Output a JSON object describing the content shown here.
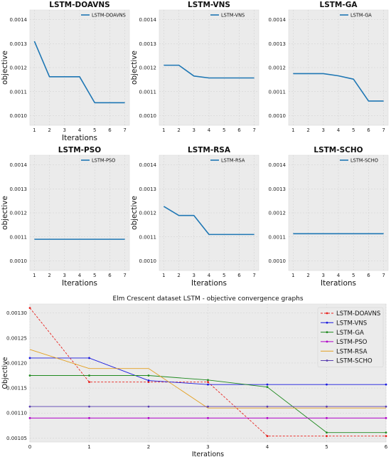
{
  "chart_data": [
    {
      "type": "line",
      "title": "LSTM-DOAVNS",
      "xlabel": "Iterations",
      "ylabel": "objective",
      "x": [
        1,
        2,
        3,
        4,
        5,
        6,
        7
      ],
      "xticks": [
        "1",
        "2",
        "3",
        "4",
        "5",
        "6",
        "7"
      ],
      "yticks": [
        0.001,
        0.0011,
        0.0012,
        0.0013,
        0.0014
      ],
      "ytick_labels": [
        "0.0010",
        "0.0011",
        "0.0012",
        "0.0013",
        "0.0014"
      ],
      "ylim": [
        0.00096,
        0.00144
      ],
      "xlim": [
        0.7,
        7.3
      ],
      "grid": true,
      "legend": "top-right",
      "series": [
        {
          "name": "LSTM-DOAVNS",
          "color": "#1f77b4",
          "values": [
            0.00131,
            0.001162,
            0.001162,
            0.001162,
            0.001054,
            0.001054,
            0.001054
          ]
        }
      ]
    },
    {
      "type": "line",
      "title": "LSTM-VNS",
      "xlabel": "",
      "ylabel": "objective",
      "x": [
        1,
        2,
        3,
        4,
        5,
        6,
        7
      ],
      "xticks": [
        "1",
        "2",
        "3",
        "4",
        "5",
        "6",
        "7"
      ],
      "yticks": [
        0.001,
        0.0011,
        0.0012,
        0.0013,
        0.0014
      ],
      "ytick_labels": [
        "0.0010",
        "0.0011",
        "0.0012",
        "0.0013",
        "0.0014"
      ],
      "ylim": [
        0.00096,
        0.00144
      ],
      "xlim": [
        0.7,
        7.3
      ],
      "grid": true,
      "legend": "top-right",
      "series": [
        {
          "name": "LSTM-VNS",
          "color": "#1f77b4",
          "values": [
            0.00121,
            0.00121,
            0.001165,
            0.001157,
            0.001157,
            0.001157,
            0.001157
          ]
        }
      ]
    },
    {
      "type": "line",
      "title": "LSTM-GA",
      "xlabel": "",
      "ylabel": "",
      "x": [
        1,
        2,
        3,
        4,
        5,
        6,
        7
      ],
      "xticks": [
        "1",
        "2",
        "3",
        "4",
        "5",
        "6",
        "7"
      ],
      "yticks": [
        0.001,
        0.0011,
        0.0012,
        0.0013,
        0.0014
      ],
      "ytick_labels": [
        "0.0010",
        "0.0011",
        "0.0012",
        "0.0013",
        "0.0014"
      ],
      "ylim": [
        0.00096,
        0.00144
      ],
      "xlim": [
        0.7,
        7.3
      ],
      "grid": true,
      "legend": "top-right",
      "series": [
        {
          "name": "LSTM-GA",
          "color": "#1f77b4",
          "values": [
            0.001175,
            0.001175,
            0.001175,
            0.001166,
            0.001152,
            0.001061,
            0.001061
          ]
        }
      ]
    },
    {
      "type": "line",
      "title": "LSTM-PSO",
      "xlabel": "Iterations",
      "ylabel": "objective",
      "x": [
        1,
        2,
        3,
        4,
        5,
        6,
        7
      ],
      "xticks": [
        "1",
        "2",
        "3",
        "4",
        "5",
        "6",
        "7"
      ],
      "yticks": [
        0.001,
        0.0011,
        0.0012,
        0.0013,
        0.0014
      ],
      "ytick_labels": [
        "0.0010",
        "0.0011",
        "0.0012",
        "0.0013",
        "0.0014"
      ],
      "ylim": [
        0.00096,
        0.00144
      ],
      "xlim": [
        0.7,
        7.3
      ],
      "grid": true,
      "legend": "top-right",
      "series": [
        {
          "name": "LSTM-PSO",
          "color": "#1f77b4",
          "values": [
            0.00109,
            0.00109,
            0.00109,
            0.00109,
            0.00109,
            0.00109,
            0.00109
          ]
        }
      ]
    },
    {
      "type": "line",
      "title": "LSTM-RSA",
      "xlabel": "Iterations",
      "ylabel": "objective",
      "x": [
        1,
        2,
        3,
        4,
        5,
        6,
        7
      ],
      "xticks": [
        "1",
        "2",
        "3",
        "4",
        "5",
        "6",
        "7"
      ],
      "yticks": [
        0.001,
        0.0011,
        0.0012,
        0.0013,
        0.0014
      ],
      "ytick_labels": [
        "0.0010",
        "0.0011",
        "0.0012",
        "0.0013",
        "0.0014"
      ],
      "ylim": [
        0.00096,
        0.00144
      ],
      "xlim": [
        0.7,
        7.3
      ],
      "grid": true,
      "legend": "top-right",
      "series": [
        {
          "name": "LSTM-RSA",
          "color": "#1f77b4",
          "values": [
            0.001227,
            0.001189,
            0.001189,
            0.00111,
            0.00111,
            0.00111,
            0.00111
          ]
        }
      ]
    },
    {
      "type": "line",
      "title": "LSTM-SCHO",
      "xlabel": "Iterations",
      "ylabel": "",
      "x": [
        1,
        2,
        3,
        4,
        5,
        6,
        7
      ],
      "xticks": [
        "1",
        "2",
        "3",
        "4",
        "5",
        "6",
        "7"
      ],
      "yticks": [
        0.001,
        0.0011,
        0.0012,
        0.0013,
        0.0014
      ],
      "ytick_labels": [
        "0.0010",
        "0.0011",
        "0.0012",
        "0.0013",
        "0.0014"
      ],
      "ylim": [
        0.00096,
        0.00144
      ],
      "xlim": [
        0.7,
        7.3
      ],
      "grid": true,
      "legend": "top-right",
      "series": [
        {
          "name": "LSTM-SCHO",
          "color": "#1f77b4",
          "values": [
            0.001113,
            0.001113,
            0.001113,
            0.001113,
            0.001113,
            0.001113,
            0.001113
          ]
        }
      ]
    },
    {
      "type": "line",
      "title": "Elm Crescent dataset LSTM -  objective convergence graphs",
      "xlabel": "Iterations",
      "ylabel": "Objective",
      "x": [
        0,
        1,
        2,
        3,
        4,
        5,
        6
      ],
      "xticks": [
        "0",
        "1",
        "2",
        "3",
        "4",
        "5",
        "6"
      ],
      "yticks": [
        0.00105,
        0.0011,
        0.00115,
        0.0012,
        0.00125,
        0.0013
      ],
      "ytick_labels": [
        "0.00105",
        "0.00110",
        "0.00115",
        "0.00120",
        "0.00125",
        "0.00130"
      ],
      "ylim": [
        0.001042,
        0.001318
      ],
      "xlim": [
        0,
        6
      ],
      "grid": true,
      "legend": "top-right",
      "series": [
        {
          "name": "LSTM-DOAVNS",
          "color": "#e8211d",
          "dashed": true,
          "marker": true,
          "values": [
            0.00131,
            0.001162,
            0.001162,
            0.001162,
            0.001054,
            0.001054,
            0.001054
          ]
        },
        {
          "name": "LSTM-VNS",
          "color": "#1a1adf",
          "dashed": false,
          "marker": true,
          "values": [
            0.00121,
            0.00121,
            0.001165,
            0.001157,
            0.001157,
            0.001157,
            0.001157
          ]
        },
        {
          "name": "LSTM-GA",
          "color": "#1f8a1f",
          "dashed": false,
          "marker": true,
          "values": [
            0.001175,
            0.001175,
            0.001175,
            0.001166,
            0.001152,
            0.001061,
            0.001061
          ]
        },
        {
          "name": "LSTM-PSO",
          "color": "#b000c8",
          "dashed": false,
          "marker": true,
          "values": [
            0.00109,
            0.00109,
            0.00109,
            0.00109,
            0.00109,
            0.00109,
            0.00109
          ]
        },
        {
          "name": "LSTM-RSA",
          "color": "#e3a020",
          "dashed": false,
          "marker": false,
          "values": [
            0.001227,
            0.001189,
            0.001189,
            0.00111,
            0.00111,
            0.00111,
            0.00111
          ]
        },
        {
          "name": "LSTM-SCHO",
          "color": "#5a3fb0",
          "dashed": false,
          "marker": true,
          "values": [
            0.001113,
            0.001113,
            0.001113,
            0.001113,
            0.001113,
            0.001113,
            0.001113
          ]
        }
      ]
    }
  ]
}
